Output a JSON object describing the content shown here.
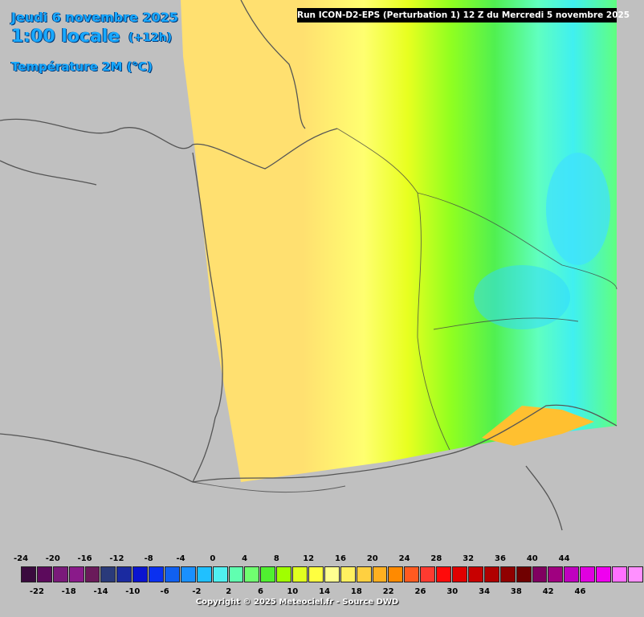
{
  "header": {
    "date": "Jeudi 6 novembre 2025",
    "hour": "1:00 locale",
    "lead": "(+12h)",
    "parameter": "Température 2M (°C)",
    "run": "Run ICON-D2-EPS (Perturbation 1) 12 Z du Mercredi 5 novembre 2025"
  },
  "legend": {
    "top_labels": [
      "-24",
      "-20",
      "-16",
      "-12",
      "-8",
      "-4",
      "0",
      "4",
      "8",
      "12",
      "16",
      "20",
      "24",
      "28",
      "32",
      "36",
      "40",
      "44"
    ],
    "bottom_labels": [
      "-22",
      "-18",
      "-14",
      "-10",
      "-6",
      "-2",
      "2",
      "6",
      "10",
      "14",
      "18",
      "22",
      "26",
      "30",
      "34",
      "38",
      "42",
      "46"
    ],
    "colors": [
      "#3a0a3e",
      "#5c0a5c",
      "#7a1a7a",
      "#8a1a8a",
      "#6a1a5a",
      "#2a3a7a",
      "#1a2aa0",
      "#0a14d0",
      "#0a30f0",
      "#1060f0",
      "#1a90ff",
      "#20c0ff",
      "#50f0f0",
      "#60ffb0",
      "#70ff70",
      "#50f030",
      "#a0ff00",
      "#e0ff20",
      "#ffff40",
      "#ffff90",
      "#fff060",
      "#ffd040",
      "#ffb020",
      "#ff8a00",
      "#ff5a20",
      "#ff3a30",
      "#ff0a0a",
      "#e00000",
      "#c80000",
      "#b00000",
      "#900000",
      "#700000",
      "#800060",
      "#a00080",
      "#c000c0",
      "#e000e0",
      "#f000f0",
      "#ff70ff",
      "#ff90ff"
    ]
  },
  "footer": {
    "credit": "Copyright © 2025 Meteociel.fr - Source DWD"
  }
}
